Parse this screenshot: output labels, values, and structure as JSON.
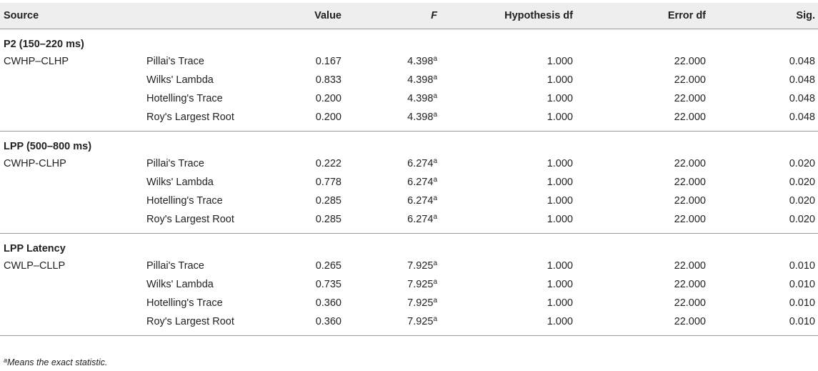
{
  "headers": {
    "source": "Source",
    "test": "",
    "value": "Value",
    "f": "F",
    "hypothesis_df": "Hypothesis df",
    "error_df": "Error df",
    "sig": "Sig."
  },
  "sections": [
    {
      "title": "P2 (150–220 ms)",
      "rows": [
        {
          "source": "CWHP–CLHP",
          "test": "Pillai's Trace",
          "value": "0.167",
          "f": "4.398",
          "f_mark": "a",
          "hdf": "1.000",
          "edf": "22.000",
          "sig": "0.048"
        },
        {
          "source": "",
          "test": "Wilks' Lambda",
          "value": "0.833",
          "f": "4.398",
          "f_mark": "a",
          "hdf": "1.000",
          "edf": "22.000",
          "sig": "0.048"
        },
        {
          "source": "",
          "test": "Hotelling's Trace",
          "value": "0.200",
          "f": "4.398",
          "f_mark": "a",
          "hdf": "1.000",
          "edf": "22.000",
          "sig": "0.048"
        },
        {
          "source": "",
          "test": "Roy's Largest Root",
          "value": "0.200",
          "f": "4.398",
          "f_mark": "a",
          "hdf": "1.000",
          "edf": "22.000",
          "sig": "0.048"
        }
      ]
    },
    {
      "title": "LPP (500–800 ms)",
      "rows": [
        {
          "source": "CWHP-CLHP",
          "test": "Pillai's Trace",
          "value": "0.222",
          "f": "6.274",
          "f_mark": "a",
          "hdf": "1.000",
          "edf": "22.000",
          "sig": "0.020"
        },
        {
          "source": "",
          "test": "Wilks' Lambda",
          "value": "0.778",
          "f": "6.274",
          "f_mark": "a",
          "hdf": "1.000",
          "edf": "22.000",
          "sig": "0.020"
        },
        {
          "source": "",
          "test": "Hotelling's Trace",
          "value": "0.285",
          "f": "6.274",
          "f_mark": "a",
          "hdf": "1.000",
          "edf": "22.000",
          "sig": "0.020"
        },
        {
          "source": "",
          "test": "Roy's Largest Root",
          "value": "0.285",
          "f": "6.274",
          "f_mark": "a",
          "hdf": "1.000",
          "edf": "22.000",
          "sig": "0.020"
        }
      ]
    },
    {
      "title": "LPP Latency",
      "rows": [
        {
          "source": "CWLP–CLLP",
          "test": "Pillai's Trace",
          "value": "0.265",
          "f": "7.925",
          "f_mark": "a",
          "hdf": "1.000",
          "edf": "22.000",
          "sig": "0.010"
        },
        {
          "source": "",
          "test": "Wilks' Lambda",
          "value": "0.735",
          "f": "7.925",
          "f_mark": "a",
          "hdf": "1.000",
          "edf": "22.000",
          "sig": "0.010"
        },
        {
          "source": "",
          "test": "Hotelling's Trace",
          "value": "0.360",
          "f": "7.925",
          "f_mark": "a",
          "hdf": "1.000",
          "edf": "22.000",
          "sig": "0.010"
        },
        {
          "source": "",
          "test": "Roy's Largest Root",
          "value": "0.360",
          "f": "7.925",
          "f_mark": "a",
          "hdf": "1.000",
          "edf": "22.000",
          "sig": "0.010"
        }
      ]
    }
  ],
  "footnote": {
    "mark": "a",
    "text": "Means the exact statistic."
  }
}
